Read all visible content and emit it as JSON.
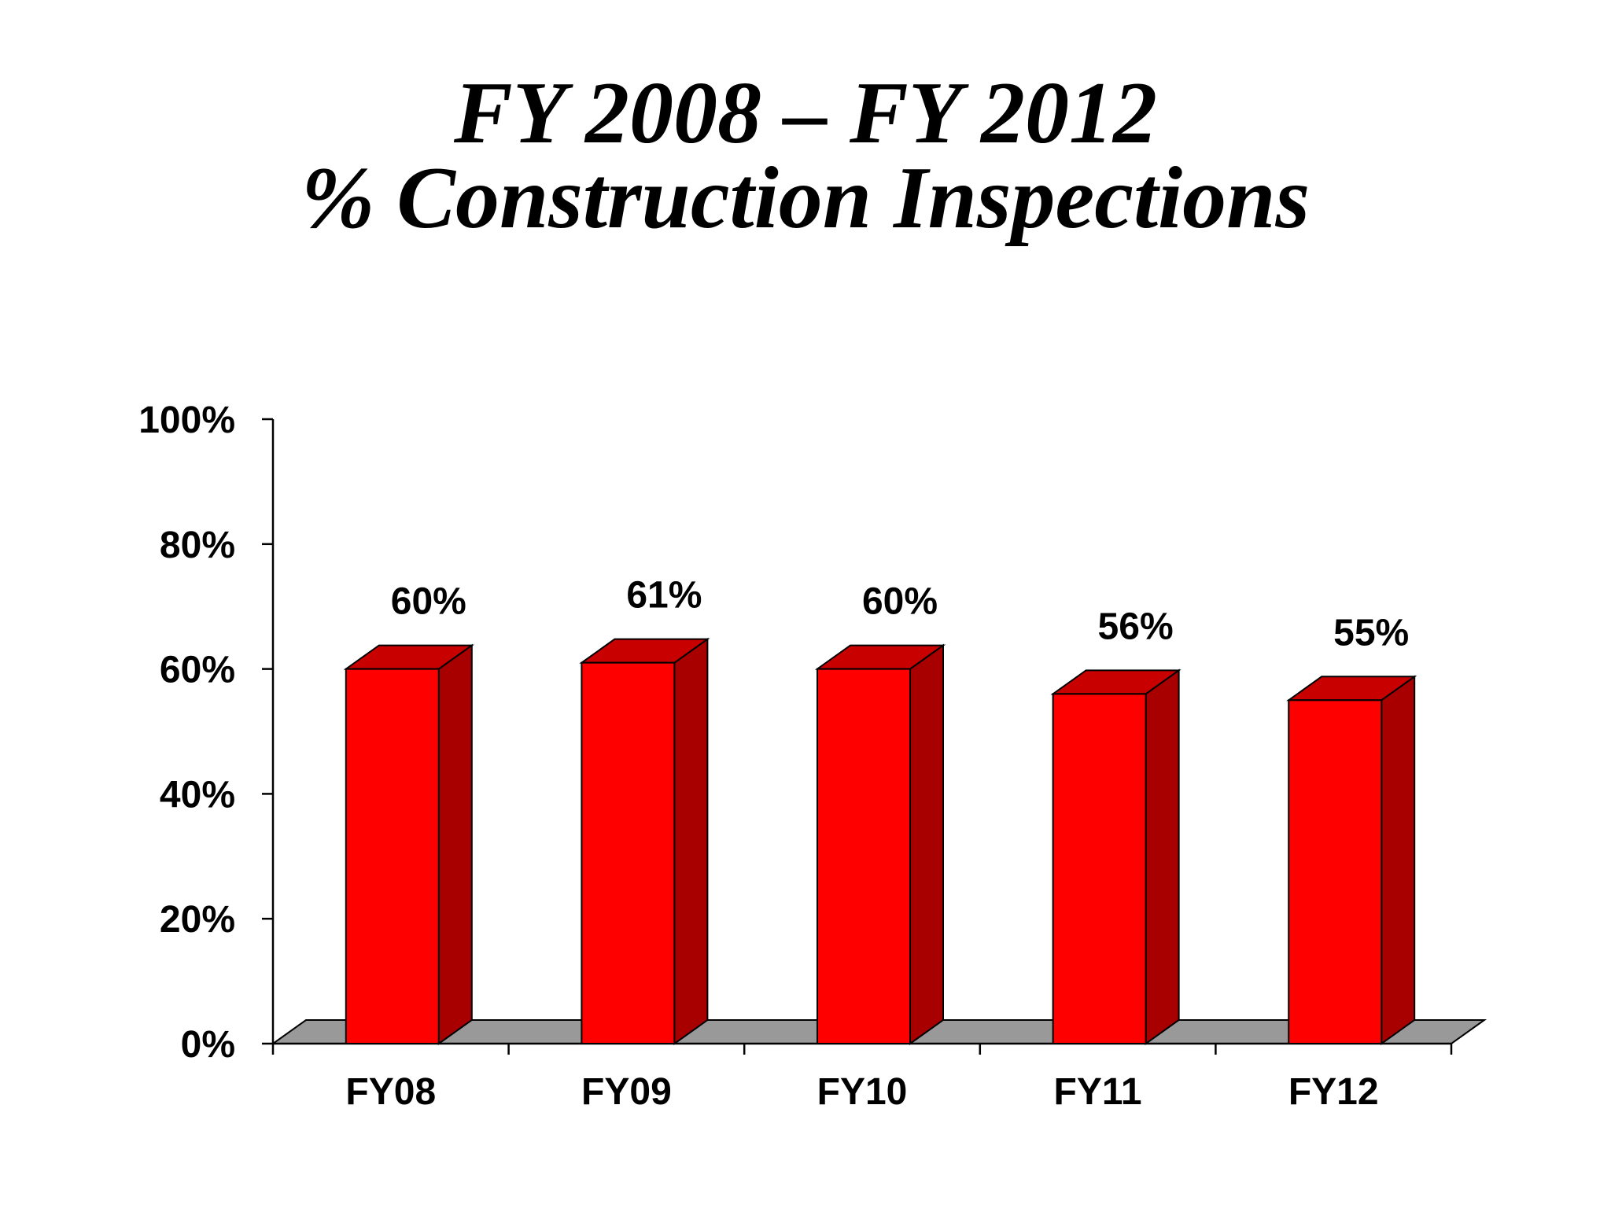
{
  "header": {
    "title_line_1": "FY 2008 – FY 2012",
    "title_line_2": "% Construction Inspections"
  },
  "chart_data": {
    "type": "bar",
    "categories": [
      "FY08",
      "FY09",
      "FY10",
      "FY11",
      "FY12"
    ],
    "values": [
      60,
      61,
      60,
      56,
      55
    ],
    "data_labels": [
      "60%",
      "61%",
      "60%",
      "56%",
      "55%"
    ],
    "ylim": [
      0,
      100
    ],
    "yticks": [
      0,
      20,
      40,
      60,
      80,
      100
    ],
    "ytick_labels": [
      "0%",
      "20%",
      "40%",
      "60%",
      "80%",
      "100%"
    ],
    "grid": false,
    "legend": "none",
    "style": "3d-column",
    "colors": {
      "bar_front": "#ff0000",
      "bar_side": "#a80000",
      "bar_top": "#c80000",
      "floor": "#999999",
      "outline": "#000000"
    }
  }
}
